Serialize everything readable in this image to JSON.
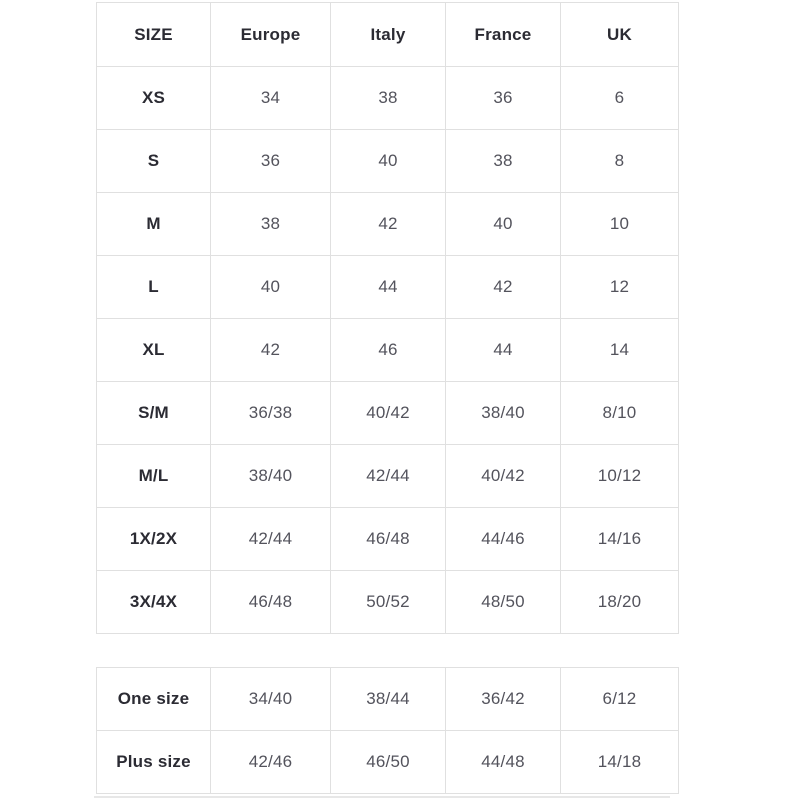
{
  "page": {
    "background": "#ffffff"
  },
  "colors": {
    "border": "#e0e0e0",
    "header_text": "#2b2b33",
    "cell_text": "#53535c",
    "bottom_shadow": "#e7e7e7"
  },
  "table1": {
    "columns": [
      "SIZE",
      "Europe",
      "Italy",
      "France",
      "UK"
    ],
    "rows": [
      {
        "size": "XS",
        "values": [
          "34",
          "38",
          "36",
          "6"
        ]
      },
      {
        "size": "S",
        "values": [
          "36",
          "40",
          "38",
          "8"
        ]
      },
      {
        "size": "M",
        "values": [
          "38",
          "42",
          "40",
          "10"
        ]
      },
      {
        "size": "L",
        "values": [
          "40",
          "44",
          "42",
          "12"
        ]
      },
      {
        "size": "XL",
        "values": [
          "42",
          "46",
          "44",
          "14"
        ]
      },
      {
        "size": "S/M",
        "values": [
          "36/38",
          "40/42",
          "38/40",
          "8/10"
        ]
      },
      {
        "size": "M/L",
        "values": [
          "38/40",
          "42/44",
          "40/42",
          "10/12"
        ]
      },
      {
        "size": "1X/2X",
        "values": [
          "42/44",
          "46/48",
          "44/46",
          "14/16"
        ]
      },
      {
        "size": "3X/4X",
        "values": [
          "46/48",
          "50/52",
          "48/50",
          "18/20"
        ]
      }
    ]
  },
  "table2": {
    "rows": [
      {
        "size": "One size",
        "values": [
          "34/40",
          "38/44",
          "36/42",
          "6/12"
        ]
      },
      {
        "size": "Plus size",
        "values": [
          "42/46",
          "46/50",
          "44/48",
          "14/18"
        ]
      }
    ]
  }
}
